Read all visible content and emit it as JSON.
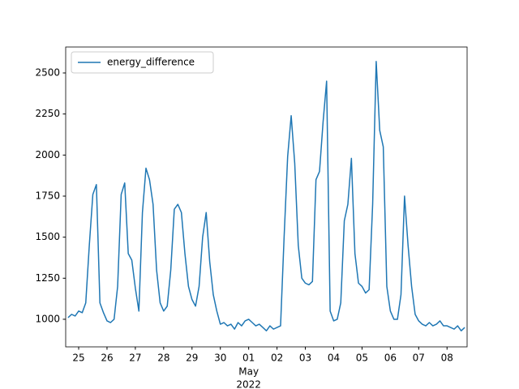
{
  "chart_data": {
    "type": "line",
    "x": [
      "2022-04-24 15:00",
      "2022-04-24 18:00",
      "2022-04-24 21:00",
      "2022-04-25 00:00",
      "2022-04-25 03:00",
      "2022-04-25 06:00",
      "2022-04-25 09:00",
      "2022-04-25 12:00",
      "2022-04-25 15:00",
      "2022-04-25 18:00",
      "2022-04-25 21:00",
      "2022-04-26 00:00",
      "2022-04-26 03:00",
      "2022-04-26 06:00",
      "2022-04-26 09:00",
      "2022-04-26 12:00",
      "2022-04-26 15:00",
      "2022-04-26 18:00",
      "2022-04-26 21:00",
      "2022-04-27 00:00",
      "2022-04-27 03:00",
      "2022-04-27 06:00",
      "2022-04-27 09:00",
      "2022-04-27 12:00",
      "2022-04-27 15:00",
      "2022-04-27 18:00",
      "2022-04-27 21:00",
      "2022-04-28 00:00",
      "2022-04-28 03:00",
      "2022-04-28 06:00",
      "2022-04-28 09:00",
      "2022-04-28 12:00",
      "2022-04-28 15:00",
      "2022-04-28 18:00",
      "2022-04-28 21:00",
      "2022-04-29 00:00",
      "2022-04-29 03:00",
      "2022-04-29 06:00",
      "2022-04-29 09:00",
      "2022-04-29 12:00",
      "2022-04-29 15:00",
      "2022-04-29 18:00",
      "2022-04-29 21:00",
      "2022-04-30 00:00",
      "2022-04-30 03:00",
      "2022-04-30 06:00",
      "2022-04-30 09:00",
      "2022-04-30 12:00",
      "2022-04-30 15:00",
      "2022-04-30 18:00",
      "2022-04-30 21:00",
      "2022-05-01 00:00",
      "2022-05-01 03:00",
      "2022-05-01 06:00",
      "2022-05-01 09:00",
      "2022-05-01 12:00",
      "2022-05-01 15:00",
      "2022-05-01 18:00",
      "2022-05-01 21:00",
      "2022-05-02 00:00",
      "2022-05-02 03:00",
      "2022-05-02 06:00",
      "2022-05-02 09:00",
      "2022-05-02 12:00",
      "2022-05-02 15:00",
      "2022-05-02 18:00",
      "2022-05-02 21:00",
      "2022-05-03 00:00",
      "2022-05-03 03:00",
      "2022-05-03 06:00",
      "2022-05-03 09:00",
      "2022-05-03 12:00",
      "2022-05-03 15:00",
      "2022-05-03 18:00",
      "2022-05-03 21:00",
      "2022-05-04 00:00",
      "2022-05-04 03:00",
      "2022-05-04 06:00",
      "2022-05-04 09:00",
      "2022-05-04 12:00",
      "2022-05-04 15:00",
      "2022-05-04 18:00",
      "2022-05-04 21:00",
      "2022-05-05 00:00",
      "2022-05-05 03:00",
      "2022-05-05 06:00",
      "2022-05-05 09:00",
      "2022-05-05 12:00",
      "2022-05-05 15:00",
      "2022-05-05 18:00",
      "2022-05-05 21:00",
      "2022-05-06 00:00",
      "2022-05-06 03:00",
      "2022-05-06 06:00",
      "2022-05-06 09:00",
      "2022-05-06 12:00",
      "2022-05-06 15:00",
      "2022-05-06 18:00",
      "2022-05-06 21:00",
      "2022-05-07 00:00",
      "2022-05-07 03:00",
      "2022-05-07 06:00",
      "2022-05-07 09:00",
      "2022-05-07 12:00",
      "2022-05-07 15:00",
      "2022-05-07 18:00",
      "2022-05-07 21:00",
      "2022-05-08 00:00",
      "2022-05-08 03:00",
      "2022-05-08 06:00",
      "2022-05-08 09:00",
      "2022-05-08 12:00",
      "2022-05-08 15:00"
    ],
    "series": [
      {
        "name": "energy_difference",
        "color": "#1f77b4",
        "values": [
          1010,
          1030,
          1020,
          1050,
          1040,
          1100,
          1450,
          1760,
          1820,
          1100,
          1040,
          990,
          980,
          1000,
          1200,
          1760,
          1830,
          1400,
          1360,
          1190,
          1050,
          1650,
          1920,
          1850,
          1700,
          1300,
          1100,
          1050,
          1080,
          1300,
          1670,
          1700,
          1650,
          1400,
          1200,
          1120,
          1080,
          1200,
          1500,
          1650,
          1350,
          1150,
          1050,
          970,
          980,
          960,
          970,
          940,
          980,
          960,
          990,
          1000,
          980,
          960,
          970,
          950,
          930,
          960,
          940,
          950,
          960,
          1500,
          1990,
          2240,
          1950,
          1450,
          1250,
          1220,
          1210,
          1230,
          1850,
          1900,
          2200,
          2450,
          1050,
          990,
          1000,
          1100,
          1600,
          1700,
          1980,
          1400,
          1220,
          1200,
          1160,
          1180,
          1700,
          2570,
          2150,
          2050,
          1200,
          1050,
          1000,
          1000,
          1150,
          1750,
          1450,
          1200,
          1030,
          990,
          970,
          960,
          980,
          960,
          970,
          990,
          960,
          960,
          950,
          940,
          960,
          930,
          950
        ]
      }
    ],
    "xlim": [
      "2022-04-24 13:00",
      "2022-05-08 17:00"
    ],
    "xticks": [
      {
        "value": "2022-04-25 00:00",
        "label": "25"
      },
      {
        "value": "2022-04-26 00:00",
        "label": "26"
      },
      {
        "value": "2022-04-27 00:00",
        "label": "27"
      },
      {
        "value": "2022-04-28 00:00",
        "label": "28"
      },
      {
        "value": "2022-04-29 00:00",
        "label": "29"
      },
      {
        "value": "2022-04-30 00:00",
        "label": "30"
      },
      {
        "value": "2022-05-01 00:00",
        "label": "01"
      },
      {
        "value": "2022-05-02 00:00",
        "label": "02"
      },
      {
        "value": "2022-05-03 00:00",
        "label": "03"
      },
      {
        "value": "2022-05-04 00:00",
        "label": "04"
      },
      {
        "value": "2022-05-05 00:00",
        "label": "05"
      },
      {
        "value": "2022-05-06 00:00",
        "label": "06"
      },
      {
        "value": "2022-05-07 00:00",
        "label": "07"
      },
      {
        "value": "2022-05-08 00:00",
        "label": "08"
      }
    ],
    "x_tick_sublabels": [
      "May",
      "2022"
    ],
    "ylim": [
      832,
      2658
    ],
    "yticks": [
      1000,
      1250,
      1500,
      1750,
      2000,
      2250,
      2500
    ],
    "grid": false,
    "legend": "upper left"
  }
}
